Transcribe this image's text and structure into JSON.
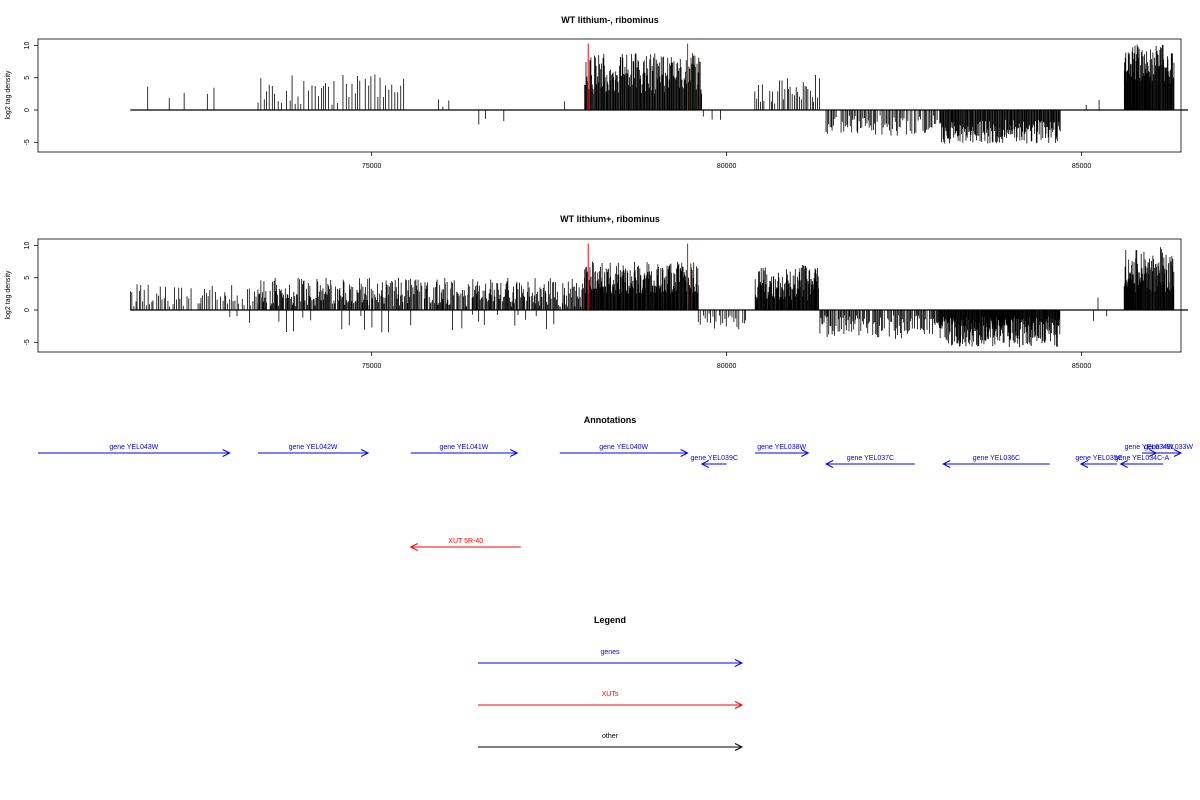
{
  "chart_data": [
    {
      "type": "bar",
      "title": "WT lithium-, ribominus",
      "ylabel": "log2 tag density",
      "xlim": [
        70300,
        86400
      ],
      "ylim": [
        -6.5,
        11
      ],
      "x_ticks": [
        75000,
        80000,
        85000
      ],
      "y_ticks": [
        -5,
        0,
        5,
        10
      ],
      "tick_labels_x": [
        "75000",
        "80000",
        "85000"
      ],
      "tick_labels_y": [
        "-5",
        "0",
        "5",
        "10"
      ],
      "baseline_range": [
        71600,
        86500
      ],
      "reference_lines": [
        {
          "x": 78050,
          "value": 10.3,
          "color": "#ff0000"
        },
        {
          "x": 79450,
          "value": 10.3,
          "color": "#ff0000"
        }
      ],
      "regions": [
        {
          "x_start": 71700,
          "x_end": 73200,
          "step": 160,
          "min": 1.0,
          "max": 4.5,
          "density": 0.7
        },
        {
          "x_start": 73400,
          "x_end": 75500,
          "step": 40,
          "min": 0.8,
          "max": 5.5,
          "density": 0.9
        },
        {
          "x_start": 75900,
          "x_end": 76100,
          "step": 50,
          "min": 0.5,
          "max": 3.0,
          "density": 0.6
        },
        {
          "x_start": 76400,
          "x_end": 76900,
          "step": 90,
          "min": -2.5,
          "max": -1.0,
          "density": 0.7
        },
        {
          "x_start": 77400,
          "x_end": 77900,
          "step": 110,
          "min": 0.5,
          "max": 1.8,
          "density": 0.5
        },
        {
          "x_start": 78000,
          "x_end": 79650,
          "step": 10,
          "min": 2.5,
          "max": 8.8,
          "density": 1.0
        },
        {
          "x_start": 79700,
          "x_end": 79900,
          "step": 100,
          "min": -2.5,
          "max": -1.0,
          "density": 0.5
        },
        {
          "x_start": 80400,
          "x_end": 81300,
          "step": 25,
          "min": 1.0,
          "max": 5.5,
          "density": 0.85
        },
        {
          "x_start": 81400,
          "x_end": 83000,
          "step": 18,
          "min": -4.0,
          "max": -0.8,
          "density": 0.9
        },
        {
          "x_start": 83000,
          "x_end": 84700,
          "step": 10,
          "min": -5.2,
          "max": -1.5,
          "density": 1.0
        },
        {
          "x_start": 85100,
          "x_end": 85500,
          "step": 120,
          "min": 0.5,
          "max": 3.0,
          "density": 0.5
        },
        {
          "x_start": 85600,
          "x_end": 86300,
          "step": 7,
          "min": 4.0,
          "max": 10.2,
          "density": 1.0
        }
      ]
    },
    {
      "type": "bar",
      "title": "WT lithium+, ribominus",
      "ylabel": "log2 tag density",
      "xlim": [
        70300,
        86400
      ],
      "ylim": [
        -6.5,
        11
      ],
      "x_ticks": [
        75000,
        80000,
        85000
      ],
      "y_ticks": [
        -5,
        0,
        5,
        10
      ],
      "tick_labels_x": [
        "75000",
        "80000",
        "85000"
      ],
      "tick_labels_y": [
        "-5",
        "0",
        "5",
        "10"
      ],
      "baseline_range": [
        71600,
        86500
      ],
      "reference_lines": [
        {
          "x": 78050,
          "value": 10.3,
          "color": "#ff0000"
        },
        {
          "x": 79450,
          "value": 10.3,
          "color": "#ff0000"
        }
      ],
      "regions": [
        {
          "x_start": 71600,
          "x_end": 73400,
          "step": 25,
          "min": 0.5,
          "max": 4.0,
          "density": 0.85
        },
        {
          "x_start": 73000,
          "x_end": 73900,
          "step": 100,
          "min": -2.0,
          "max": -0.5,
          "density": 0.4
        },
        {
          "x_start": 73400,
          "x_end": 78000,
          "step": 12,
          "min": 0.5,
          "max": 5.0,
          "density": 0.9
        },
        {
          "x_start": 73800,
          "x_end": 77800,
          "step": 80,
          "min": -3.5,
          "max": -0.5,
          "density": 0.5
        },
        {
          "x_start": 78000,
          "x_end": 79600,
          "step": 8,
          "min": 2.5,
          "max": 7.5,
          "density": 1.0
        },
        {
          "x_start": 79600,
          "x_end": 80300,
          "step": 25,
          "min": -3.0,
          "max": -0.5,
          "density": 0.8
        },
        {
          "x_start": 80400,
          "x_end": 81300,
          "step": 8,
          "min": 1.5,
          "max": 7.0,
          "density": 1.0
        },
        {
          "x_start": 81300,
          "x_end": 83000,
          "step": 14,
          "min": -4.5,
          "max": -0.8,
          "density": 0.9
        },
        {
          "x_start": 83000,
          "x_end": 84700,
          "step": 7,
          "min": -5.8,
          "max": -1.0,
          "density": 1.0
        },
        {
          "x_start": 84700,
          "x_end": 85500,
          "step": 110,
          "min": -2.0,
          "max": -0.5,
          "density": 0.5
        },
        {
          "x_start": 85000,
          "x_end": 85300,
          "step": 120,
          "min": 1.0,
          "max": 2.2,
          "density": 0.6
        },
        {
          "x_start": 85600,
          "x_end": 86300,
          "step": 7,
          "min": 2.5,
          "max": 9.8,
          "density": 1.0
        }
      ]
    }
  ],
  "annotations": {
    "title": "Annotations",
    "xlim": [
      70300,
      86400
    ],
    "features": [
      {
        "label": "gene YEL043W",
        "start": 70300,
        "end": 73000,
        "strand": "+",
        "row": 1,
        "color": "#0000ff"
      },
      {
        "label": "gene YEL042W",
        "start": 73400,
        "end": 74950,
        "strand": "+",
        "row": 1,
        "color": "#0000ff"
      },
      {
        "label": "gene YEL041W",
        "start": 75550,
        "end": 77050,
        "strand": "+",
        "row": 1,
        "color": "#0000ff"
      },
      {
        "label": "gene YEL040W",
        "start": 77650,
        "end": 79450,
        "strand": "+",
        "row": 1,
        "color": "#0000ff"
      },
      {
        "label": "gene YEL039C",
        "start": 79650,
        "end": 80000,
        "strand": "-",
        "row": 2,
        "color": "#0000ff"
      },
      {
        "label": "gene YEL038W",
        "start": 80400,
        "end": 81150,
        "strand": "+",
        "row": 1,
        "color": "#0000ff"
      },
      {
        "label": "gene YEL037C",
        "start": 81400,
        "end": 82650,
        "strand": "-",
        "row": 2,
        "color": "#0000ff"
      },
      {
        "label": "gene YEL036C",
        "start": 83050,
        "end": 84550,
        "strand": "-",
        "row": 2,
        "color": "#0000ff"
      },
      {
        "label": "gene YEL035C",
        "start": 84990,
        "end": 85500,
        "strand": "-",
        "row": 2,
        "color": "#0000ff"
      },
      {
        "label": "gene YEL034C-A",
        "start": 85550,
        "end": 86150,
        "strand": "-",
        "row": 2,
        "color": "#0000ff"
      },
      {
        "label": "gene YEL034W",
        "start": 85850,
        "end": 86050,
        "strand": "+",
        "row": 1,
        "color": "#0000ff"
      },
      {
        "label": "gene YEL033W",
        "start": 86050,
        "end": 86400,
        "strand": "+",
        "row": 1,
        "color": "#0000ff"
      },
      {
        "label": "XUT 5R-40",
        "start": 75550,
        "end": 77100,
        "strand": "-",
        "row": 3,
        "color": "#ff0000"
      }
    ]
  },
  "legend": {
    "title": "Legend",
    "items": [
      {
        "label": "genes",
        "color": "#0000ff"
      },
      {
        "label": "XUTs",
        "color": "#ff0000"
      },
      {
        "label": "other",
        "color": "#000000"
      }
    ]
  }
}
